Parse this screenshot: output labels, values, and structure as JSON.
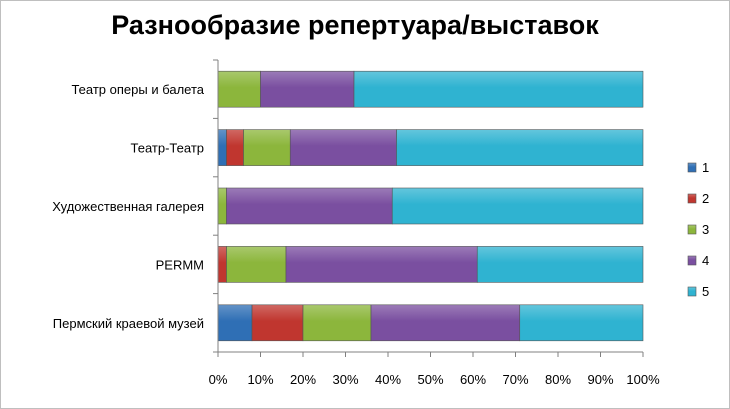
{
  "chart_data": {
    "type": "bar",
    "orientation": "horizontal",
    "stacked": "percent",
    "title": "Разнообразие репертуара/выставок",
    "categories": [
      "Театр оперы и балета",
      "Театр-Театр",
      "Художественная галерея",
      "PERMM",
      "Пермский краевой музей"
    ],
    "series": [
      {
        "name": "1",
        "color": "#2f6fb5",
        "values": [
          0,
          2,
          0,
          0,
          8
        ]
      },
      {
        "name": "2",
        "color": "#c0362f",
        "values": [
          0,
          4,
          0,
          2,
          12
        ]
      },
      {
        "name": "3",
        "color": "#8cb63c",
        "values": [
          10,
          11,
          2,
          14,
          16
        ]
      },
      {
        "name": "4",
        "color": "#7a4fa0",
        "values": [
          22,
          25,
          39,
          45,
          35
        ]
      },
      {
        "name": "5",
        "color": "#2fb3d1",
        "values": [
          68,
          58,
          59,
          39,
          29
        ]
      }
    ],
    "xlim": [
      0,
      100
    ],
    "xticks": [
      "0%",
      "10%",
      "20%",
      "30%",
      "40%",
      "50%",
      "60%",
      "70%",
      "80%",
      "90%",
      "100%"
    ],
    "grid": false,
    "legend": "right"
  }
}
